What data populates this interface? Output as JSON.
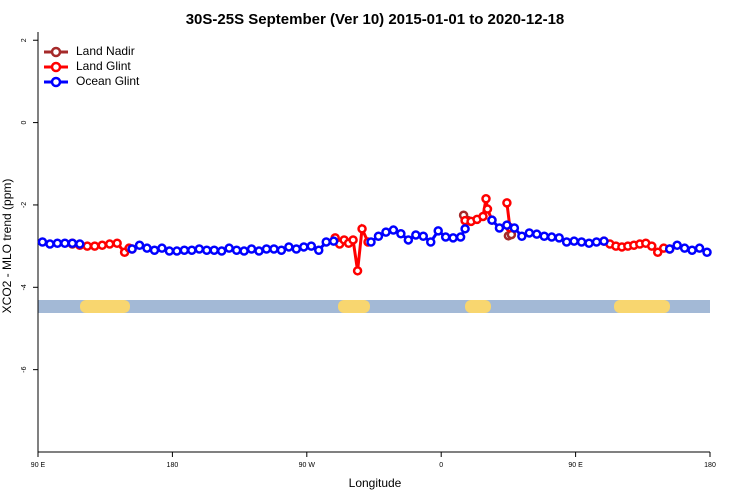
{
  "chart_data": {
    "type": "line",
    "title": "30S-25S September (Ver 10)   2015-01-01 to 2020-12-18",
    "x_label": "Longitude",
    "y_label": "XCO2 - MLO trend (ppm)",
    "xlim": [
      90,
      540
    ],
    "ylim": [
      -8,
      2.2
    ],
    "xticks": [
      {
        "value": 90,
        "label": "90 E"
      },
      180,
      {
        "value": 270,
        "label": "90 W"
      },
      {
        "value": 360,
        "label": "0"
      },
      {
        "value": 450,
        "label": "90 E"
      },
      {
        "value": 540,
        "label": "180"
      }
    ],
    "yticks": [
      2,
      0,
      -2,
      -4,
      -6
    ],
    "legend": "top-left",
    "series": [
      {
        "name": "Land Nadir",
        "color": "#a52a2a",
        "x": [
          113,
          null,
          375,
          378,
          null,
          405,
          407
        ],
        "values": [
          -2.95,
          null,
          -2.25,
          -2.38,
          null,
          -2.75,
          -2.72
        ]
      },
      {
        "name": "Land Glint",
        "color": "#ff0000",
        "x": [
          113,
          118,
          123,
          128,
          133,
          138,
          143,
          148,
          151,
          153,
          null,
          289,
          292,
          295,
          298,
          301,
          304,
          307,
          311,
          null,
          376,
          380,
          384,
          388,
          390,
          391,
          394,
          null,
          404,
          406,
          null,
          469,
          473,
          477,
          481,
          485,
          489,
          493,
          497,
          501,
          505,
          509,
          513
        ],
        "values": [
          -2.93,
          -2.98,
          -3.0,
          -3.0,
          -2.98,
          -2.95,
          -2.93,
          -3.15,
          -3.05,
          -3.07,
          null,
          -2.8,
          -2.95,
          -2.85,
          -2.93,
          -2.85,
          -3.6,
          -2.58,
          -2.9,
          null,
          -2.38,
          -2.4,
          -2.35,
          -2.28,
          -1.85,
          -2.1,
          -2.37,
          null,
          -1.95,
          -2.55,
          null,
          -2.88,
          -2.95,
          -3.0,
          -3.02,
          -3.0,
          -2.98,
          -2.95,
          -2.93,
          -3.0,
          -3.15,
          -3.05,
          -3.07
        ]
      },
      {
        "name": "Ocean Glint",
        "color": "#0000ff",
        "x": [
          93,
          98,
          103,
          108,
          113,
          118,
          null,
          153,
          158,
          163,
          168,
          173,
          178,
          183,
          188,
          193,
          198,
          203,
          208,
          213,
          218,
          223,
          228,
          233,
          238,
          243,
          248,
          253,
          258,
          263,
          268,
          273,
          278,
          283,
          288,
          null,
          313,
          318,
          323,
          328,
          333,
          338,
          343,
          348,
          353,
          358,
          363,
          368,
          373,
          376,
          null,
          394,
          399,
          404,
          409,
          414,
          419,
          424,
          429,
          434,
          439,
          444,
          449,
          454,
          459,
          464,
          469,
          null,
          513,
          518,
          523,
          528,
          533,
          538
        ],
        "values": [
          -2.9,
          -2.95,
          -2.93,
          -2.93,
          -2.93,
          -2.95,
          null,
          -3.07,
          -2.98,
          -3.05,
          -3.1,
          -3.05,
          -3.12,
          -3.12,
          -3.1,
          -3.1,
          -3.07,
          -3.1,
          -3.1,
          -3.12,
          -3.05,
          -3.1,
          -3.12,
          -3.07,
          -3.12,
          -3.07,
          -3.07,
          -3.1,
          -3.02,
          -3.07,
          -3.02,
          -3.0,
          -3.1,
          -2.9,
          -2.88,
          null,
          -2.9,
          -2.76,
          -2.66,
          -2.61,
          -2.7,
          -2.85,
          -2.73,
          -2.76,
          -2.9,
          -2.63,
          -2.78,
          -2.8,
          -2.78,
          -2.58,
          null,
          -2.37,
          -2.56,
          -2.49,
          -2.56,
          -2.76,
          -2.68,
          -2.71,
          -2.76,
          -2.78,
          -2.8,
          -2.9,
          -2.88,
          -2.9,
          -2.93,
          -2.9,
          -2.88,
          null,
          -3.07,
          -2.98,
          -3.05,
          -3.1,
          -3.05,
          -3.15
        ]
      }
    ]
  }
}
